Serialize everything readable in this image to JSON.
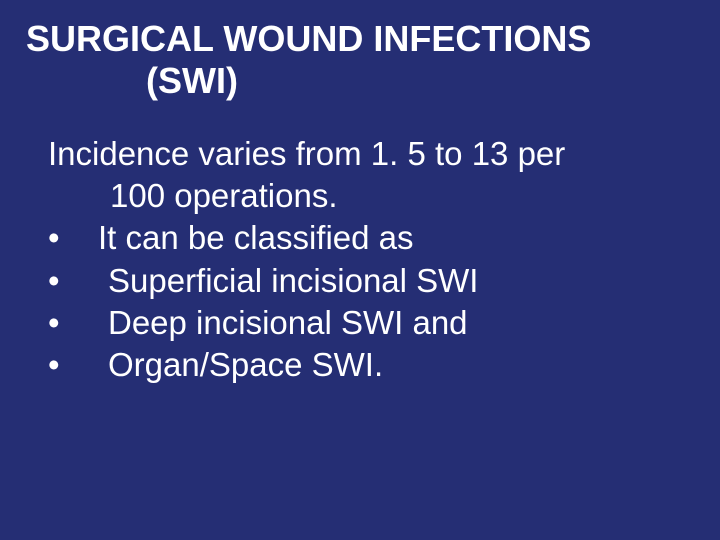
{
  "colors": {
    "background": "#252e74",
    "text": "#ffffff"
  },
  "typography": {
    "font_family": "Arial, Helvetica, sans-serif",
    "title_fontsize": 36,
    "title_weight": "bold",
    "body_fontsize": 33
  },
  "title": {
    "line1": "SURGICAL WOUND  INFECTIONS",
    "line2": "(SWI)"
  },
  "intro": {
    "line1": "Incidence varies from 1. 5 to 13 per",
    "line2": "100 operations."
  },
  "bullets": [
    {
      "marker": "•",
      "text": "It can be classified as",
      "indent": "indent1"
    },
    {
      "marker": "•",
      "text": "Superficial incisional SWI",
      "indent": "indent2"
    },
    {
      "marker": "•",
      "text": "Deep incisional SWI and",
      "indent": "indent2"
    },
    {
      "marker": "•",
      "text": "Organ/Space SWI.",
      "indent": "indent2"
    }
  ]
}
